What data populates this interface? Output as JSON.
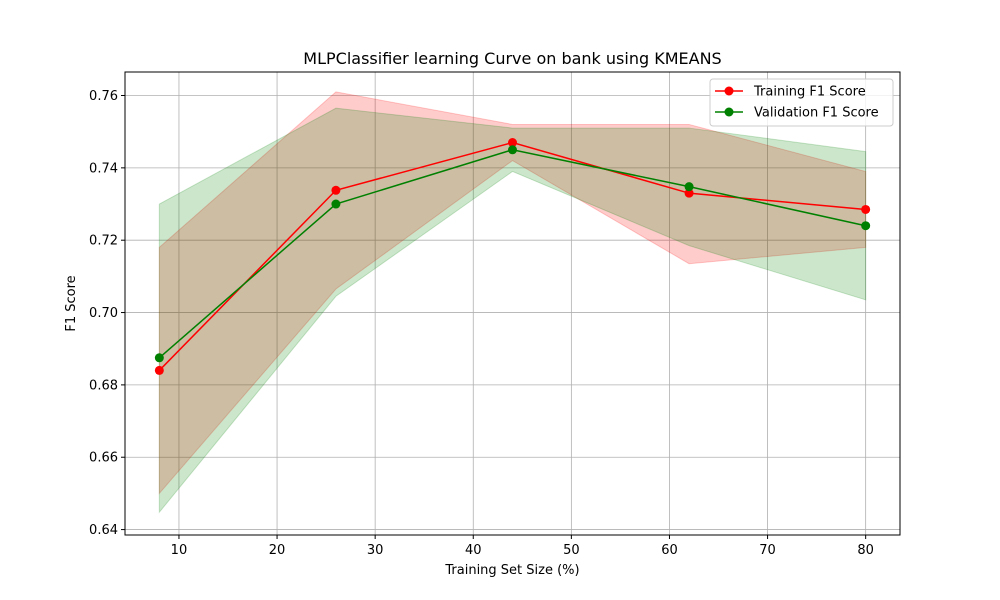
{
  "chart_data": {
    "type": "line",
    "title": "MLPClassifier learning Curve on bank using KMEANS",
    "xlabel": "Training Set Size (%)",
    "ylabel": "F1 Score",
    "xlim": [
      4.5,
      83.5
    ],
    "ylim": [
      0.6385,
      0.7665
    ],
    "x_ticks": [
      10,
      20,
      30,
      40,
      50,
      60,
      70,
      80
    ],
    "y_ticks": [
      0.64,
      0.66,
      0.68,
      0.7,
      0.72,
      0.74,
      0.76
    ],
    "y_tick_labels": [
      "0.64",
      "0.66",
      "0.68",
      "0.70",
      "0.72",
      "0.74",
      "0.76"
    ],
    "grid": true,
    "legend_position": "top-right",
    "x": [
      8,
      26,
      44,
      62,
      80
    ],
    "series": [
      {
        "name": "Training F1 Score",
        "color": "#ff0000",
        "band_color": "#ff0000",
        "values": [
          0.684,
          0.7338,
          0.747,
          0.733,
          0.7285
        ],
        "lower": [
          0.65,
          0.7065,
          0.742,
          0.7135,
          0.718
        ],
        "upper": [
          0.718,
          0.761,
          0.752,
          0.752,
          0.739
        ]
      },
      {
        "name": "Validation F1 Score",
        "color": "#008000",
        "band_color": "#008000",
        "values": [
          0.6875,
          0.73,
          0.745,
          0.7348,
          0.724
        ],
        "lower": [
          0.6448,
          0.7045,
          0.739,
          0.7185,
          0.7035
        ],
        "upper": [
          0.73,
          0.7565,
          0.751,
          0.751,
          0.7445
        ]
      }
    ]
  }
}
